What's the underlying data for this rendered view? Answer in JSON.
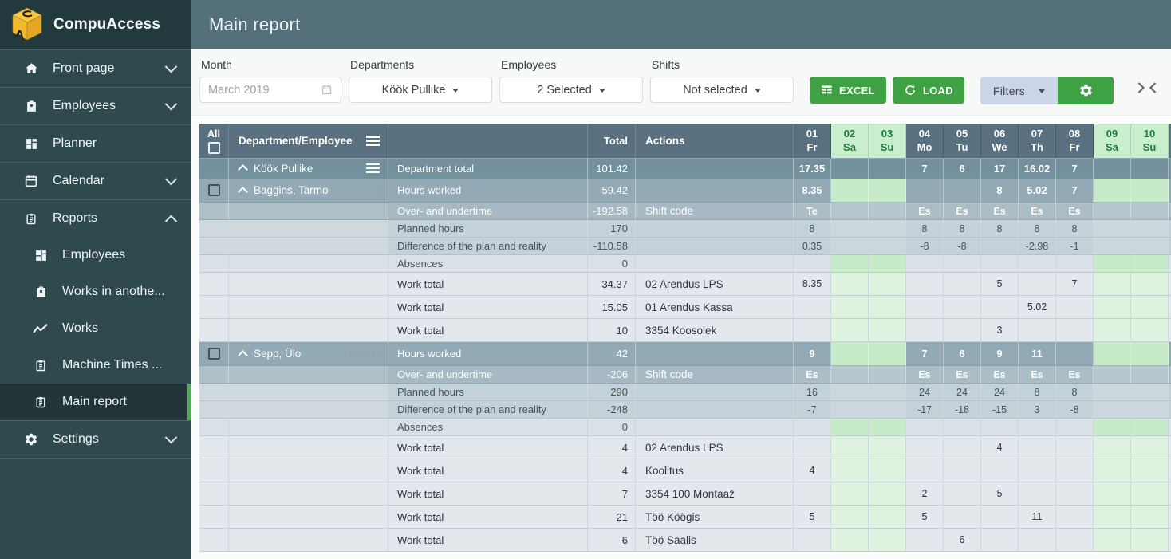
{
  "brand": {
    "name": "CompuAccess"
  },
  "page_title": "Main report",
  "colors": {
    "accent_green": "#3ea144",
    "sidebar_active_bar": "#4caf50",
    "header_bar": "#53707b",
    "table_header": "#58707f",
    "weekend_header_bg": "#c8eecd",
    "weekend_header_text": "#1d7b36",
    "weekend_cell_green": "#c5ebc9",
    "weekend_cell_light_green": "#def2e0",
    "filters_button_bg": "#ccd4e7",
    "negative_value": "#e04343",
    "positive_value": "#27a343"
  },
  "sidebar": [
    {
      "label": "Front page",
      "icon": "home-icon",
      "chevron": "down"
    },
    {
      "label": "Employees",
      "icon": "badge-icon",
      "chevron": "down"
    },
    {
      "label": "Planner",
      "icon": "grid-icon"
    },
    {
      "label": "Calendar",
      "icon": "calendar-icon",
      "chevron": "down"
    },
    {
      "label": "Reports",
      "icon": "clipboard-icon",
      "chevron": "up"
    },
    {
      "label": "Employees",
      "icon": "grid-icon",
      "sub": true
    },
    {
      "label": "Works in anothe...",
      "icon": "badge-icon",
      "sub": true
    },
    {
      "label": "Works",
      "icon": "chart-line-icon",
      "sub": true
    },
    {
      "label": "Machine Times ...",
      "icon": "clipboard-icon",
      "sub": true
    },
    {
      "label": "Main report",
      "icon": "clipboard-icon",
      "sub": true,
      "active": true
    },
    {
      "label": "Settings",
      "icon": "gear-icon",
      "chevron": "down"
    }
  ],
  "filters": {
    "month": {
      "label": "Month",
      "value": "March 2019"
    },
    "departments": {
      "label": "Departments",
      "value": "Köök Pullike"
    },
    "employees": {
      "label": "Employees",
      "value": "2 Selected"
    },
    "shifts": {
      "label": "Shifts",
      "value": "Not selected"
    }
  },
  "toolbar": {
    "excel_label": "EXCEL",
    "load_label": "LOAD",
    "filters_label": "Filters"
  },
  "table": {
    "columns": {
      "all": "All",
      "department_employee": "Department/Employee",
      "total": "Total",
      "actions": "Actions"
    },
    "days": [
      {
        "num": "01",
        "dow": "Fr",
        "weekend": false
      },
      {
        "num": "02",
        "dow": "Sa",
        "weekend": true
      },
      {
        "num": "03",
        "dow": "Su",
        "weekend": true
      },
      {
        "num": "04",
        "dow": "Mo",
        "weekend": false
      },
      {
        "num": "05",
        "dow": "Tu",
        "weekend": false
      },
      {
        "num": "06",
        "dow": "We",
        "weekend": false
      },
      {
        "num": "07",
        "dow": "Th",
        "weekend": false
      },
      {
        "num": "08",
        "dow": "Fr",
        "weekend": false
      },
      {
        "num": "09",
        "dow": "Sa",
        "weekend": true
      },
      {
        "num": "10",
        "dow": "Su",
        "weekend": true
      }
    ],
    "rows": [
      {
        "type": "department",
        "name": "Köök Pullike",
        "label": "Department total",
        "total": "101.42",
        "days": {
          "01": "17.35",
          "04": "7",
          "05": "6",
          "06": "17",
          "07": "16.02",
          "08": "7"
        }
      },
      {
        "type": "employee",
        "name": "Baggins, Tarmo",
        "emp_id": "1",
        "label": "Hours worked",
        "total": "59.42",
        "days": {
          "01": "8.35",
          "06": "8",
          "07": "5.02",
          "08": "7"
        }
      },
      {
        "type": "shift",
        "label": "Over- and undertime",
        "total": "-192.58",
        "action": "Shift code",
        "days": {
          "01": "Te",
          "04": "Es",
          "05": "Es",
          "06": "Es",
          "07": "Es",
          "08": "Es"
        }
      },
      {
        "type": "detail",
        "label": "Planned hours",
        "total": "170",
        "days": {
          "01": "8",
          "04": "8",
          "05": "8",
          "06": "8",
          "07": "8",
          "08": "8"
        }
      },
      {
        "type": "detail",
        "label": "Difference of the plan and reality",
        "total": "-110.58",
        "days": {
          "01": "0.35",
          "04": "-8",
          "05": "-8",
          "07": "-2.98",
          "08": "-1"
        },
        "day_colors": {
          "01": "pos",
          "04": "neg",
          "05": "neg",
          "07": "neg",
          "08": "neg"
        }
      },
      {
        "type": "absence",
        "label": "Absences",
        "total": "0",
        "days": {}
      },
      {
        "type": "work",
        "label": "Work total",
        "total": "34.37",
        "action": "02 Arendus LPS",
        "days": {
          "01": "8.35",
          "06": "5",
          "08": "7"
        }
      },
      {
        "type": "work",
        "label": "Work total",
        "total": "15.05",
        "action": "01 Arendus Kassa",
        "days": {
          "07": "5.02"
        }
      },
      {
        "type": "work",
        "label": "Work total",
        "total": "10",
        "action": "3354 Koosolek",
        "days": {
          "06": "3"
        }
      },
      {
        "type": "employee",
        "name": "Sepp, Ülo",
        "emp_id": "1123442",
        "label": "Hours worked",
        "total": "42",
        "days": {
          "01": "9",
          "04": "7",
          "05": "6",
          "06": "9",
          "07": "11"
        }
      },
      {
        "type": "shift",
        "label": "Over- and undertime",
        "total": "-206",
        "action": "Shift code",
        "days": {
          "01": "Es",
          "04": "Es",
          "05": "Es",
          "06": "Es",
          "07": "Es",
          "08": "Es"
        }
      },
      {
        "type": "detail",
        "label": "Planned hours",
        "total": "290",
        "days": {
          "01": "16",
          "04": "24",
          "05": "24",
          "06": "24",
          "07": "8",
          "08": "8"
        }
      },
      {
        "type": "detail",
        "label": "Difference of the plan and reality",
        "total": "-248",
        "days": {
          "01": "-7",
          "04": "-17",
          "05": "-18",
          "06": "-15",
          "07": "3",
          "08": "-8"
        },
        "day_colors": {
          "01": "neg",
          "04": "neg",
          "05": "neg",
          "06": "neg",
          "07": "pos",
          "08": "neg"
        }
      },
      {
        "type": "absence",
        "label": "Absences",
        "total": "0",
        "days": {}
      },
      {
        "type": "work",
        "label": "Work total",
        "total": "4",
        "action": "02 Arendus LPS",
        "days": {
          "06": "4"
        }
      },
      {
        "type": "work",
        "label": "Work total",
        "total": "4",
        "action": "Koolitus",
        "days": {
          "01": "4"
        }
      },
      {
        "type": "work",
        "label": "Work total",
        "total": "7",
        "action": "3354 100 Montaaž",
        "days": {
          "04": "2",
          "06": "5"
        }
      },
      {
        "type": "work",
        "label": "Work total",
        "total": "21",
        "action": "Töö Köögis",
        "days": {
          "01": "5",
          "04": "5",
          "07": "11"
        }
      },
      {
        "type": "work",
        "label": "Work total",
        "total": "6",
        "action": "Töö Saalis",
        "days": {
          "05": "6"
        }
      }
    ]
  }
}
